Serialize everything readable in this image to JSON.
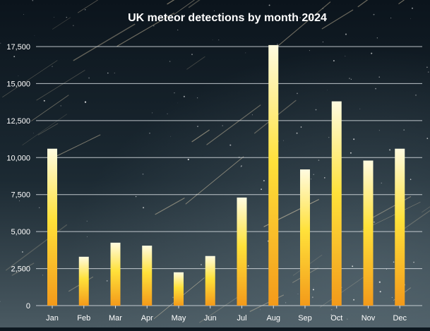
{
  "chart_data": {
    "type": "bar",
    "title": "UK meteor detections by month 2024",
    "categories": [
      "Jan",
      "Feb",
      "Mar",
      "Apr",
      "May",
      "Jun",
      "Jul",
      "Aug",
      "Sep",
      "Oct",
      "Nov",
      "Dec"
    ],
    "values": [
      10600,
      3300,
      4250,
      4050,
      2250,
      3350,
      7300,
      17600,
      9200,
      13800,
      9800,
      10600
    ],
    "ylim": [
      0,
      17500
    ],
    "yticks": [
      0,
      2500,
      5000,
      7500,
      10000,
      12500,
      15000,
      17500
    ],
    "ytick_labels": [
      "0",
      "2,500",
      "5,000",
      "7,500",
      "10,000",
      "12,500",
      "15,000",
      "17,500"
    ],
    "xlabel": "",
    "ylabel": "",
    "grid": true,
    "legend": "none",
    "colors": {
      "bar_top": "#fffbe0",
      "bar_mid": "#ffe13a",
      "bar_bottom": "#f39a1a",
      "grid": "#d9dfe4",
      "text": "#ffffff",
      "background_top": "#0b141c",
      "background_bottom": "#4a5a62"
    }
  }
}
